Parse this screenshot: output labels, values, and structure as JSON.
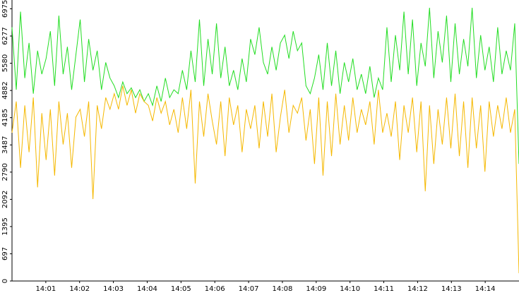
{
  "chart_data": {
    "type": "line",
    "xlim": [
      "14:00",
      "14:15"
    ],
    "xticks": [
      "14:01",
      "14:02",
      "14:03",
      "14:04",
      "14:05",
      "14:06",
      "14:07",
      "14:08",
      "14:09",
      "14:10",
      "14:11",
      "14:12",
      "14:13",
      "14:14"
    ],
    "ylim": [
      0,
      7200
    ],
    "yticks": [
      0,
      697,
      1395,
      2092,
      2790,
      3487,
      4185,
      4882,
      5580,
      6277,
      6975
    ],
    "series": [
      {
        "color": "#22dd22",
        "values": [
          6500,
          4900,
          6900,
          5200,
          6100,
          4800,
          5900,
          5300,
          5700,
          6400,
          5000,
          6800,
          5300,
          6000,
          4900,
          5800,
          6700,
          5100,
          6200,
          5400,
          5900,
          4900,
          5600,
          5200,
          5000,
          4700,
          5100,
          4800,
          4950,
          4700,
          4900,
          4600,
          4800,
          4500,
          5000,
          4600,
          5200,
          4700,
          4900,
          4800,
          5400,
          4900,
          5900,
          5100,
          6700,
          5000,
          6200,
          5300,
          6600,
          5200,
          6000,
          5000,
          5400,
          4900,
          5700,
          5100,
          6200,
          5800,
          6500,
          5600,
          5300,
          6000,
          5400,
          6100,
          6300,
          5700,
          6400,
          5900,
          6100,
          5000,
          4800,
          5200,
          5800,
          4900,
          6100,
          5000,
          5900,
          4800,
          5600,
          5100,
          5700,
          4900,
          5300,
          4800,
          5500,
          4700,
          5200,
          4900,
          6500,
          5100,
          6300,
          5400,
          6900,
          5300,
          6700,
          5000,
          6100,
          5500,
          7000,
          5200,
          6400,
          5600,
          6800,
          5100,
          6600,
          5300,
          6200,
          5500,
          7000,
          5200,
          6300,
          5400,
          6000,
          5100,
          6500,
          5300,
          5900,
          5400,
          6600,
          3000
        ]
      },
      {
        "color": "#f5b800",
        "values": [
          3800,
          4600,
          2900,
          4500,
          3300,
          4700,
          2400,
          4300,
          3100,
          4400,
          2700,
          4600,
          3500,
          4300,
          2900,
          4200,
          4400,
          3700,
          4600,
          2100,
          4500,
          3900,
          4700,
          4400,
          4800,
          4400,
          5000,
          4500,
          4900,
          4300,
          4800,
          4600,
          4500,
          4100,
          4700,
          4300,
          4600,
          4000,
          4400,
          3800,
          4700,
          3900,
          4900,
          2500,
          4600,
          3700,
          4800,
          4100,
          3500,
          4600,
          3200,
          4700,
          4000,
          4500,
          3300,
          4400,
          3900,
          4500,
          3400,
          4600,
          3700,
          4800,
          3300,
          4200,
          4900,
          3800,
          4500,
          4300,
          4700,
          3600,
          4400,
          3000,
          4700,
          2700,
          4600,
          3200,
          4800,
          3500,
          4500,
          3600,
          4700,
          3800,
          4400,
          4000,
          4600,
          3500,
          4900,
          3800,
          4300,
          3700,
          4600,
          3100,
          4500,
          3800,
          4700,
          3300,
          4600,
          2300,
          4500,
          3000,
          4400,
          3500,
          4700,
          3400,
          4800,
          3200,
          4600,
          2900,
          4700,
          3400,
          4500,
          2800,
          4600,
          3700,
          4500,
          3900,
          4700,
          3800,
          4400,
          200
        ]
      }
    ]
  }
}
